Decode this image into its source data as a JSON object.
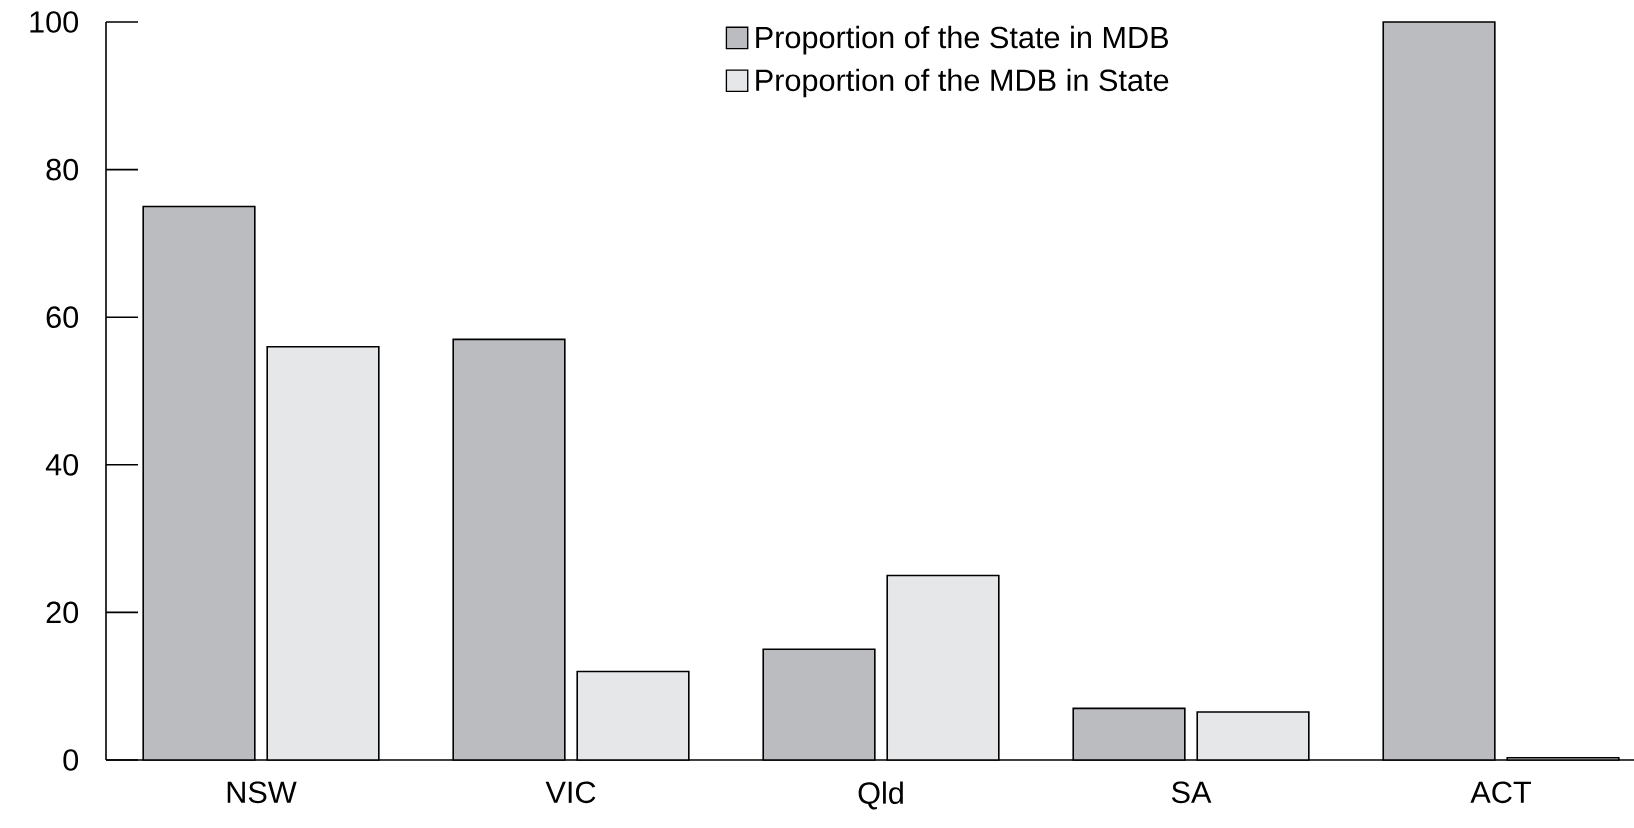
{
  "chart_data": {
    "type": "bar",
    "categories": [
      "NSW",
      "VIC",
      "Qld",
      "SA",
      "ACT"
    ],
    "series": [
      {
        "name": "Proportion of the State in MDB",
        "color": "#bbbcbf",
        "values": [
          75,
          57,
          15,
          7,
          100
        ]
      },
      {
        "name": "Proportion of the MDB in State",
        "color": "#e6e7e8",
        "values": [
          56,
          12,
          25,
          6.5,
          0.3
        ]
      }
    ],
    "ylim": [
      0,
      100
    ],
    "yticks": [
      0,
      20,
      40,
      60,
      80,
      100
    ],
    "legend": "top",
    "grid": false
  }
}
